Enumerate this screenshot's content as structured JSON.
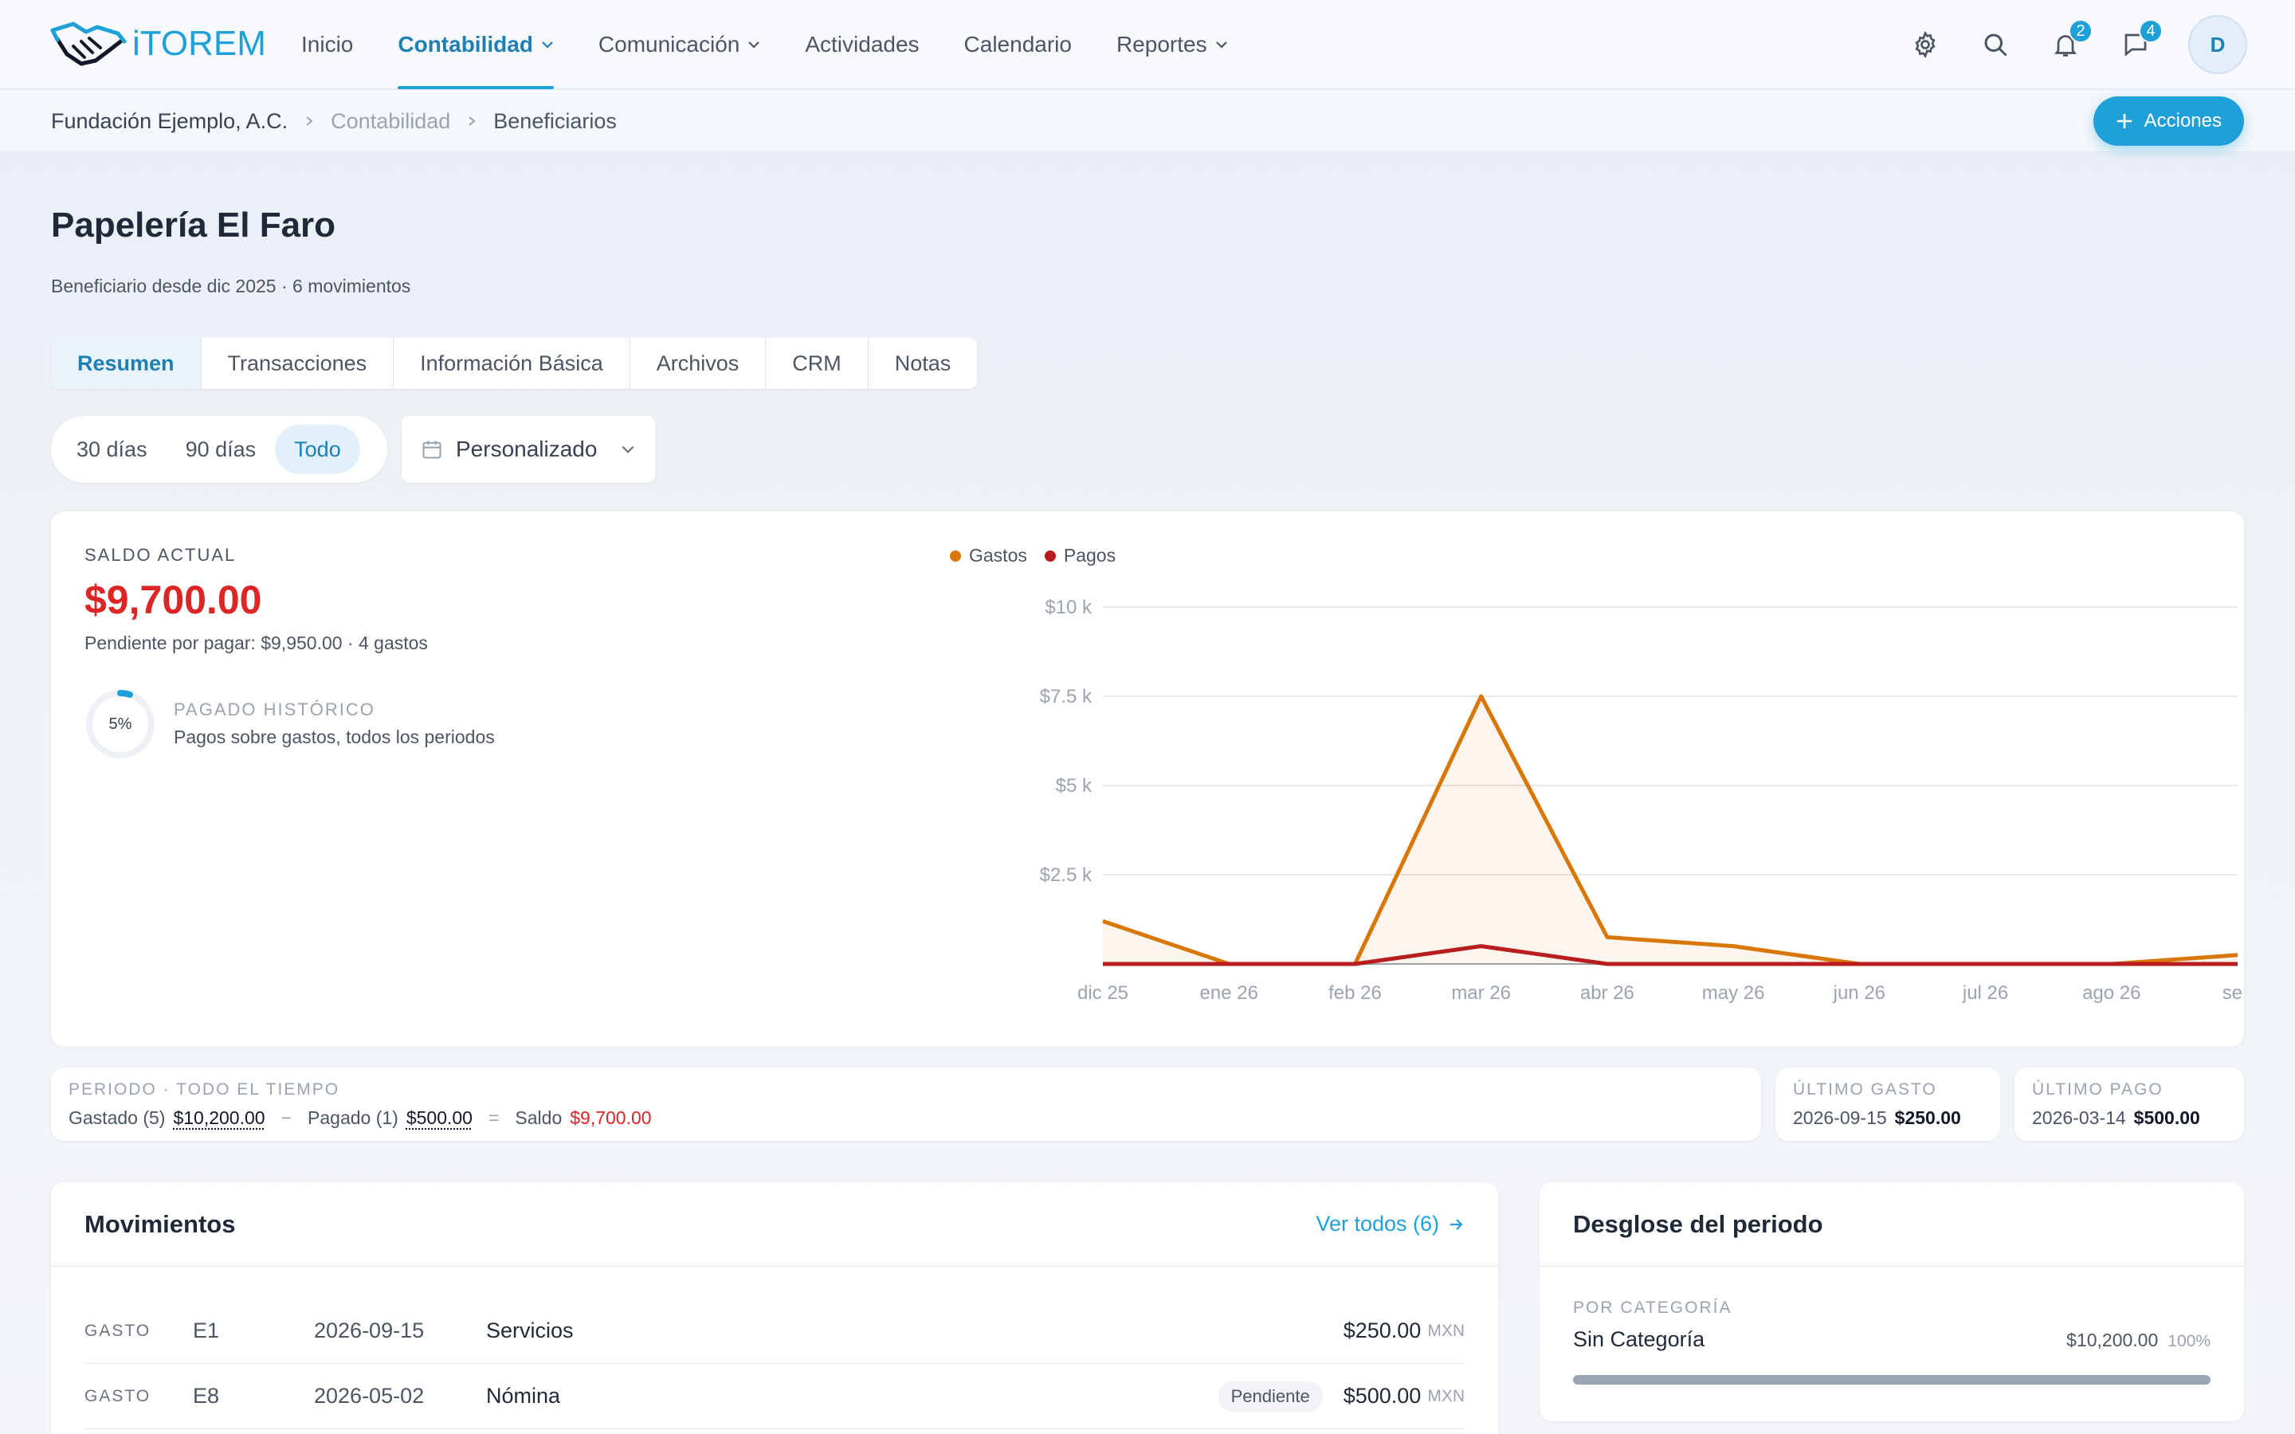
{
  "app": {
    "brand": "iTOREM"
  },
  "nav": {
    "items": [
      {
        "label": "Inicio",
        "dropdown": false,
        "active": false
      },
      {
        "label": "Contabilidad",
        "dropdown": true,
        "active": true
      },
      {
        "label": "Comunicación",
        "dropdown": true,
        "active": false
      },
      {
        "label": "Actividades",
        "dropdown": false,
        "active": false
      },
      {
        "label": "Calendario",
        "dropdown": false,
        "active": false
      },
      {
        "label": "Reportes",
        "dropdown": true,
        "active": false
      }
    ]
  },
  "topbar": {
    "icons": [
      "gear-icon",
      "search-icon",
      "bell-icon",
      "chat-icon"
    ],
    "notifications_count": "2",
    "messages_count": "4",
    "avatar_initial": "D"
  },
  "breadcrumb": [
    "Fundación Ejemplo, A.C.",
    "Contabilidad",
    "Beneficiarios"
  ],
  "actions_label": "Acciones",
  "page": {
    "title": "Papelería El Faro",
    "subtitle": "Beneficiario desde dic 2025 · 6 movimientos"
  },
  "tabs": [
    "Resumen",
    "Transacciones",
    "Información Básica",
    "Archivos",
    "CRM",
    "Notas"
  ],
  "range": {
    "options": [
      "30 días",
      "90 días",
      "Todo"
    ],
    "selected": "Todo",
    "custom_label": "Personalizado"
  },
  "summary": {
    "saldo_label": "SALDO ACTUAL",
    "saldo_value": "$9,700.00",
    "pending_text": "Pendiente por pagar: $9,950.00 · 4 gastos",
    "paid_pct_label": "5%",
    "paid_fraction": 0.05,
    "hist_label": "PAGADO HISTÓRICO",
    "hist_sub": "Pagos sobre gastos, todos los periodos"
  },
  "chart_data": {
    "type": "area",
    "categories": [
      "dic 25",
      "ene 26",
      "feb 26",
      "mar 26",
      "abr 26",
      "may 26",
      "jun 26",
      "jul 26",
      "ago 26",
      "sep"
    ],
    "y_ticks": [
      "$10 k",
      "$7.5 k",
      "$5 k",
      "$2.5 k"
    ],
    "ylim": [
      0,
      10000
    ],
    "series": [
      {
        "name": "Gastos",
        "color": "#d97706",
        "values": [
          1200,
          0,
          0,
          7500,
          750,
          500,
          0,
          0,
          0,
          250
        ]
      },
      {
        "name": "Pagos",
        "color": "#b91c1c",
        "values": [
          0,
          0,
          0,
          500,
          0,
          0,
          0,
          0,
          0,
          0
        ]
      }
    ],
    "grid": true,
    "legend": "top-left"
  },
  "period": {
    "label": "PERIODO · TODO EL TIEMPO",
    "gastado_label": "Gastado (5)",
    "gastado": "$10,200.00",
    "minus": "−",
    "pagado_label": "Pagado (1)",
    "pagado": "$500.00",
    "equals": "=",
    "saldo_label": "Saldo",
    "saldo": "$9,700.00"
  },
  "last_expense": {
    "label": "ÚLTIMO GASTO",
    "date": "2026-09-15",
    "amount": "$250.00"
  },
  "last_payment": {
    "label": "ÚLTIMO PAGO",
    "date": "2026-03-14",
    "amount": "$500.00"
  },
  "movements": {
    "title": "Movimientos",
    "view_all": "Ver todos (6)",
    "rows": [
      {
        "type": "GASTO",
        "id": "E1",
        "date": "2026-09-15",
        "desc": "Servicios",
        "status": "",
        "amount": "$250.00",
        "currency": "MXN"
      },
      {
        "type": "GASTO",
        "id": "E8",
        "date": "2026-05-02",
        "desc": "Nómina",
        "status": "Pendiente",
        "amount": "$500.00",
        "currency": "MXN"
      }
    ]
  },
  "breakdown": {
    "title": "Desglose del periodo",
    "by_category_label": "POR CATEGORÍA",
    "categories": [
      {
        "name": "Sin Categoría",
        "amount": "$10,200.00",
        "pct": "100%"
      }
    ]
  }
}
